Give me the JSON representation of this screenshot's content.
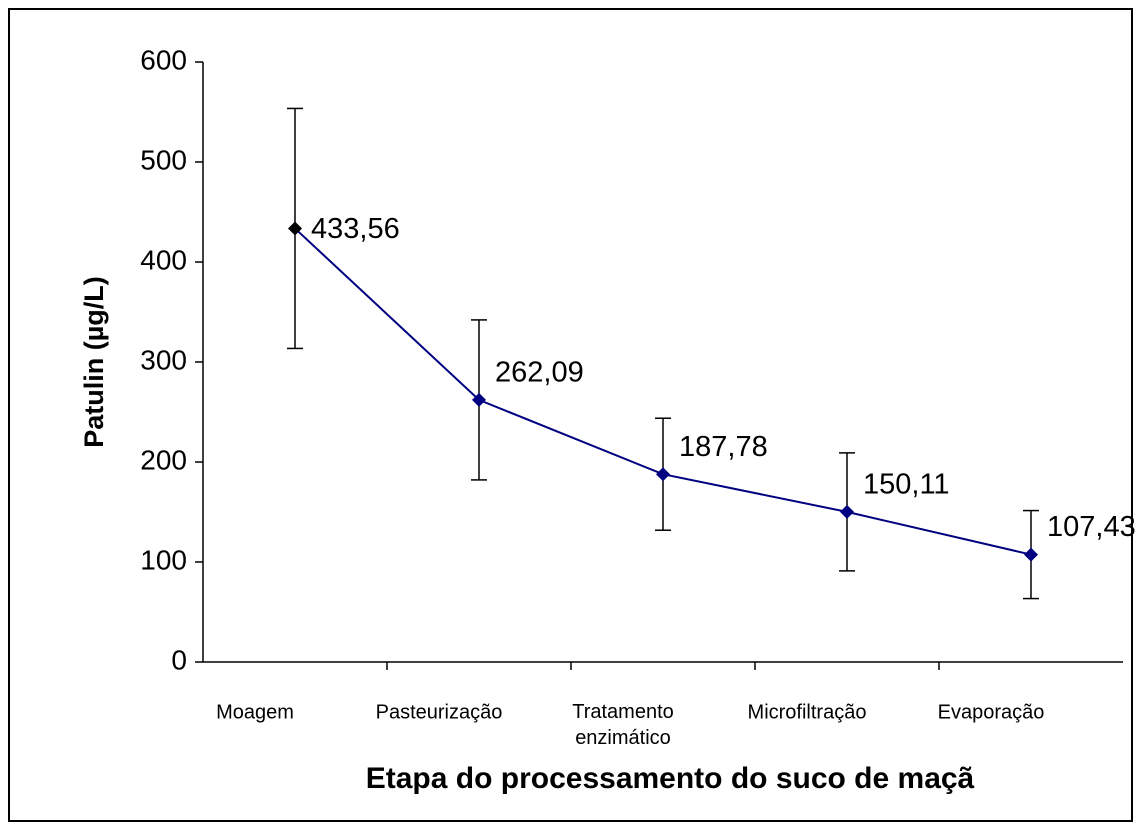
{
  "chart_data": {
    "type": "line",
    "x_label": "Etapa do processamento do suco de maçã",
    "y_label": "Patulin (µg/L)",
    "categories": [
      "Moagem",
      "Pasteurização",
      "Tratamento enzimático",
      "Microfiltração",
      "Evaporação"
    ],
    "series": [
      {
        "color": "#000080",
        "point_colors": [
          "#000000",
          "#000080",
          "#000080",
          "#000080",
          "#000080"
        ],
        "values": [
          433.56,
          262.09,
          187.78,
          150.11,
          107.43
        ],
        "value_labels": [
          "433,56",
          "262,09",
          "187,78",
          "150,11",
          "107,43"
        ],
        "errors": [
          120,
          80,
          56,
          59,
          44
        ]
      }
    ],
    "ylim": [
      0,
      600
    ],
    "yticks": [
      0,
      100,
      200,
      300,
      400,
      500,
      600
    ],
    "grid": false
  }
}
